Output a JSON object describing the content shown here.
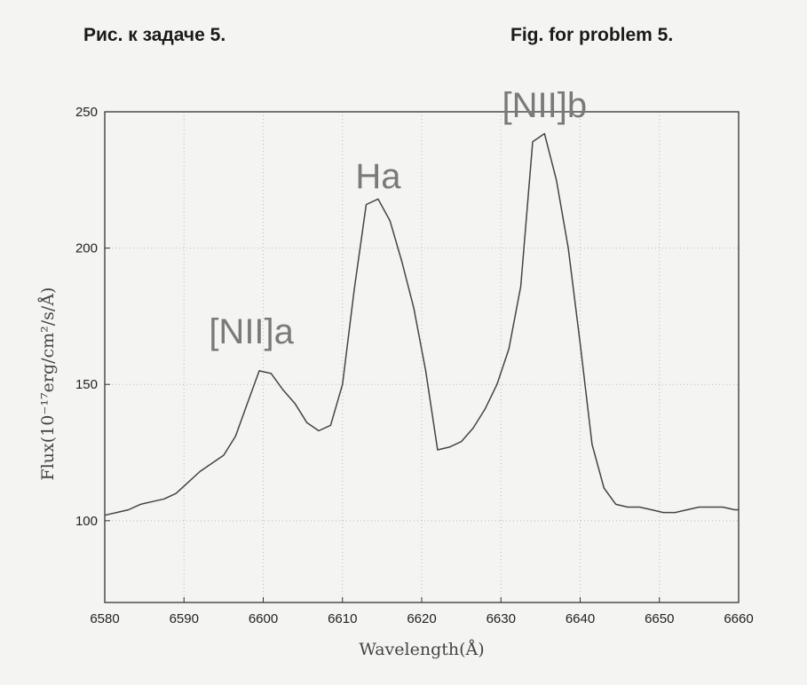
{
  "captions": {
    "ru": "Рис. к задаче 5.",
    "en": "Fig. for problem 5."
  },
  "chart_data": {
    "type": "line",
    "xlabel": "Wavelength(Å)",
    "ylabel": "Flux(10⁻¹⁷erg/cm²/s/Å)",
    "xlim": [
      6580,
      6660
    ],
    "ylim": [
      70,
      250
    ],
    "xticks": [
      6580,
      6590,
      6600,
      6610,
      6620,
      6630,
      6640,
      6650,
      6660
    ],
    "yticks": [
      100,
      150,
      200,
      250
    ],
    "grid": true,
    "line_color": "#444444",
    "series": [
      {
        "x": [
          6580,
          6581.5,
          6583,
          6584.5,
          6586,
          6587.5,
          6589,
          6590.5,
          6592,
          6593.5,
          6595,
          6596.5,
          6598,
          6599.5,
          6601,
          6602.5,
          6604,
          6605.5,
          6607,
          6608.5,
          6610,
          6611.5,
          6613,
          6614.5,
          6616,
          6617.5,
          6619,
          6620.5,
          6622,
          6623.5,
          6625,
          6626.5,
          6628,
          6629.5,
          6631,
          6632.5,
          6634,
          6635.5,
          6637,
          6638.5,
          6640,
          6641.5,
          6643,
          6644.5,
          6646,
          6647.5,
          6649,
          6650.5,
          6652,
          6653.5,
          6655,
          6656.5,
          6658,
          6659.5,
          6660
        ],
        "y": [
          102,
          103,
          104,
          106,
          107,
          108,
          110,
          114,
          118,
          121,
          124,
          131,
          143,
          155,
          154,
          148,
          143,
          136,
          133,
          135,
          150,
          185,
          216,
          218,
          210,
          195,
          178,
          155,
          126,
          127,
          129,
          134,
          141,
          150,
          163,
          186,
          239,
          242,
          225,
          200,
          165,
          128,
          112,
          106,
          105,
          105,
          104,
          103,
          103,
          104,
          105,
          105,
          105,
          104,
          104
        ]
      }
    ],
    "annotations": [
      {
        "text": "[NII]a",
        "x": 6598.5,
        "y": 165
      },
      {
        "text": "Ha",
        "x": 6614.5,
        "y": 222
      },
      {
        "text": "[NII]b",
        "x": 6635.5,
        "y": 248
      }
    ]
  }
}
